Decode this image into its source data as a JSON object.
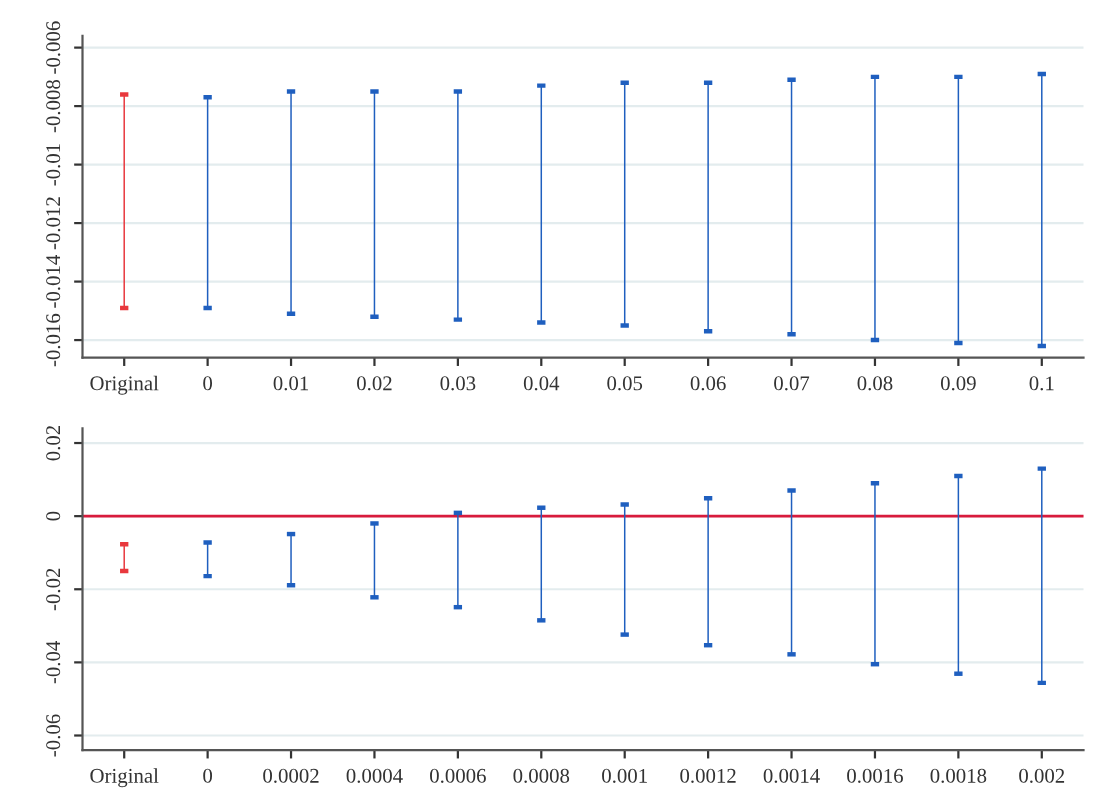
{
  "chart_data": [
    {
      "type": "bar",
      "categories": [
        "Original",
        "0",
        "0.01",
        "0.02",
        "0.03",
        "0.04",
        "0.05",
        "0.06",
        "0.07",
        "0.08",
        "0.09",
        "0.1"
      ],
      "base": [
        -0.0149,
        -0.0149,
        -0.0151,
        -0.0152,
        -0.0153,
        -0.0154,
        -0.0155,
        -0.0157,
        -0.0158,
        -0.016,
        -0.0161,
        -0.0162
      ],
      "values": [
        0.0073,
        0.0072,
        0.0076,
        0.0077,
        0.0078,
        0.0081,
        0.0083,
        0.0085,
        0.0087,
        0.009,
        0.0091,
        0.0093
      ],
      "colors": [
        "#e8383d",
        "#1f5fbf",
        "#1f5fbf",
        "#1f5fbf",
        "#1f5fbf",
        "#1f5fbf",
        "#1f5fbf",
        "#1f5fbf",
        "#1f5fbf",
        "#1f5fbf",
        "#1f5fbf",
        "#1f5fbf"
      ],
      "ylim": [
        -0.0166,
        -0.0056
      ],
      "yticks": [
        -0.006,
        -0.008,
        -0.01,
        -0.012,
        -0.014,
        -0.016
      ],
      "grid": "y"
    },
    {
      "type": "bar",
      "categories": [
        "Original",
        "0",
        "0.0002",
        "0.0004",
        "0.0006",
        "0.0008",
        "0.001",
        "0.0012",
        "0.0014",
        "0.0016",
        "0.0018",
        "0.002"
      ],
      "base": [
        -0.015,
        -0.0164,
        -0.0189,
        -0.0222,
        -0.0249,
        -0.0285,
        -0.0324,
        -0.0353,
        -0.0378,
        -0.0405,
        -0.0431,
        -0.0456
      ],
      "values": [
        0.0073,
        0.0092,
        0.014,
        0.0202,
        0.0258,
        0.0308,
        0.0356,
        0.0402,
        0.0448,
        0.0495,
        0.0541,
        0.0586
      ],
      "colors": [
        "#e8383d",
        "#1f5fbf",
        "#1f5fbf",
        "#1f5fbf",
        "#1f5fbf",
        "#1f5fbf",
        "#1f5fbf",
        "#1f5fbf",
        "#1f5fbf",
        "#1f5fbf",
        "#1f5fbf",
        "#1f5fbf"
      ],
      "ylim": [
        -0.064,
        0.024
      ],
      "yticks": [
        0.02,
        0,
        -0.02,
        -0.04,
        -0.06
      ],
      "grid": "y",
      "ref_lines": [
        {
          "axis": "y",
          "value": 0,
          "color": "#d81b3c"
        }
      ]
    }
  ]
}
